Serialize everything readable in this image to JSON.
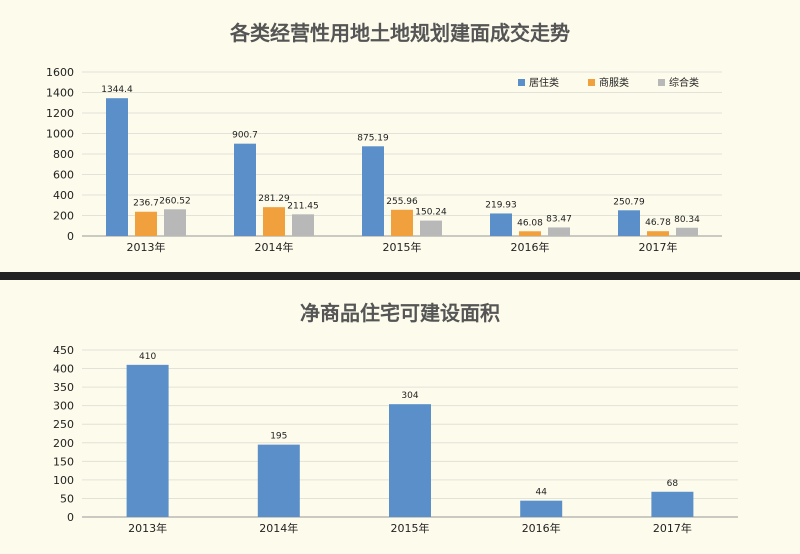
{
  "colors": {
    "residential": "#5b8fc9",
    "commercial": "#f0a03c",
    "mixed": "#b8b8b8",
    "single": "#5b8fc9"
  },
  "chart_data": [
    {
      "type": "bar",
      "title": "各类经营性用地土地规划建面成交走势",
      "categories": [
        "2013年",
        "2014年",
        "2015年",
        "2016年",
        "2017年"
      ],
      "series": [
        {
          "name": "居住类",
          "values": [
            1344.4,
            900.7,
            875.19,
            219.93,
            250.79
          ],
          "labels": [
            "1344.4",
            "900.7",
            "875.19",
            "219.93",
            "250.79"
          ]
        },
        {
          "name": "商服类",
          "values": [
            236.7,
            281.29,
            255.96,
            46.08,
            46.78
          ],
          "labels": [
            "236.7",
            "281.29",
            "255.96",
            "46.08",
            "46.78"
          ]
        },
        {
          "name": "综合类",
          "values": [
            260.52,
            211.45,
            150.24,
            83.47,
            80.34
          ],
          "labels": [
            "260.52",
            "211.45",
            "150.24",
            "83.47",
            "80.34"
          ]
        }
      ],
      "ylim": [
        0,
        1600
      ],
      "yticks": [
        0,
        200,
        400,
        600,
        800,
        1000,
        1200,
        1400,
        1600
      ],
      "legend_position": "top-right",
      "grid": true
    },
    {
      "type": "bar",
      "title": "净商品住宅可建设面积",
      "categories": [
        "2013年",
        "2014年",
        "2015年",
        "2016年",
        "2017年"
      ],
      "series": [
        {
          "values": [
            410,
            195,
            304,
            44,
            68
          ],
          "labels": [
            "410",
            "195",
            "304",
            "44",
            "68"
          ]
        }
      ],
      "ylim": [
        0,
        450
      ],
      "yticks": [
        0,
        50,
        100,
        150,
        200,
        250,
        300,
        350,
        400,
        450
      ],
      "grid": true
    }
  ]
}
